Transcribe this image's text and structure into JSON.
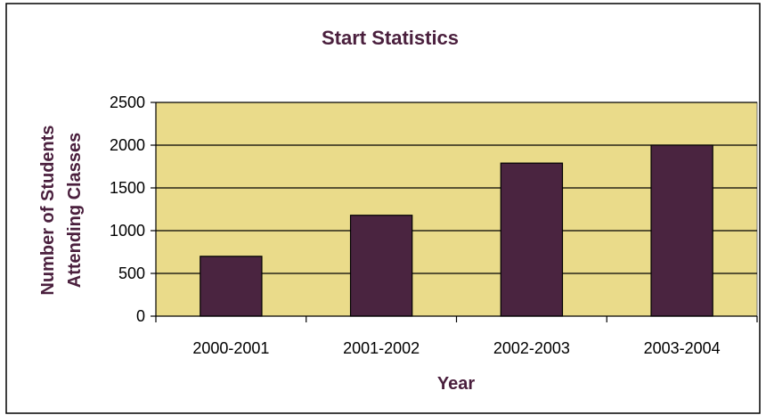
{
  "chart_data": {
    "type": "bar",
    "title": "Start Statistics",
    "xlabel": "Year",
    "ylabel_lines": [
      "Number of Students",
      "Attending Classes"
    ],
    "categories": [
      "2000-2001",
      "2001-2002",
      "2002-2003",
      "2003-2004"
    ],
    "values": [
      700,
      1180,
      1790,
      2000
    ],
    "ylim": [
      0,
      2500
    ],
    "yticks": [
      0,
      500,
      1000,
      1500,
      2000,
      2500
    ],
    "grid": true,
    "legend": "none",
    "colors": {
      "plot_background": "#eadb8a",
      "bar_fill": "#4a2440",
      "title_and_labels": "#4a1f3d",
      "gridline": "#000000"
    }
  }
}
